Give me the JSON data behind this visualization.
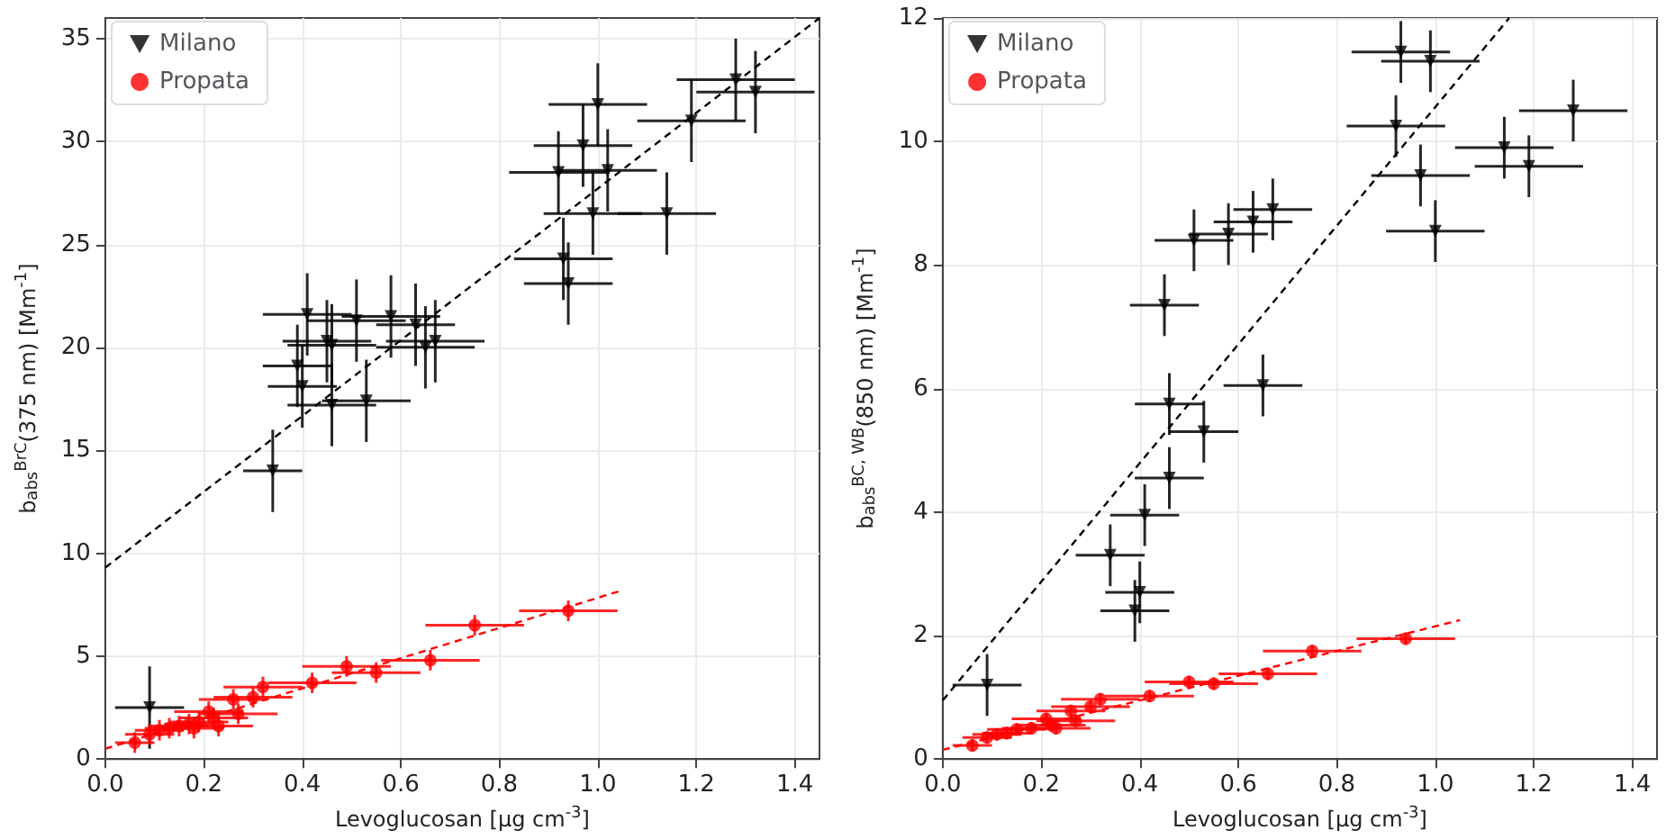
{
  "chart_data": [
    {
      "type": "scatter",
      "xlabel": "Levoglucosan [µg cm$^{-3}$]",
      "ylabel": "b$_{abs}$$^{BrC}$(375 nm) [Mm$^{-1}$]",
      "xlim": [
        0,
        1.45
      ],
      "ylim": [
        0,
        36
      ],
      "xticks": [
        {
          "value": 0,
          "label": "0.0"
        },
        {
          "value": 0.2,
          "label": "0.2"
        },
        {
          "value": 0.4,
          "label": "0.4"
        },
        {
          "value": 0.6,
          "label": "0.6"
        },
        {
          "value": 0.8,
          "label": "0.8"
        },
        {
          "value": 1,
          "label": "1.0"
        },
        {
          "value": 1.2,
          "label": "1.2"
        },
        {
          "value": 1.4,
          "label": "1.4"
        }
      ],
      "yticks": [
        0,
        5,
        10,
        15,
        20,
        25,
        30,
        35
      ],
      "grid": true,
      "legend": "top left",
      "series": [
        {
          "name": "Milano",
          "color": "#000000",
          "marker": "triangle",
          "x": [
            0.09,
            0.34,
            0.39,
            0.4,
            0.41,
            0.45,
            0.46,
            0.46,
            0.51,
            0.53,
            0.58,
            0.63,
            0.65,
            0.67,
            0.92,
            0.93,
            0.94,
            0.97,
            0.99,
            1.0,
            1.02,
            1.14,
            1.19,
            1.28,
            1.32
          ],
          "values": [
            2.5,
            14,
            19.1,
            18.1,
            21.6,
            20.3,
            20.1,
            17.2,
            21.3,
            17.4,
            21.5,
            21.1,
            20.0,
            20.3,
            28.5,
            24.3,
            23.1,
            29.8,
            26.5,
            31.8,
            28.6,
            26.5,
            31.0,
            33.0,
            32.4
          ],
          "errors": [
            2,
            2,
            2,
            2,
            2,
            2,
            2,
            2,
            2,
            2,
            2,
            2,
            2,
            2,
            2,
            2,
            2,
            2,
            2,
            2,
            2,
            2,
            2,
            2,
            2
          ],
          "xerrors": [
            0.07,
            0.06,
            0.07,
            0.07,
            0.09,
            0.09,
            0.09,
            0.09,
            0.1,
            0.09,
            0.1,
            0.08,
            0.1,
            0.1,
            0.1,
            0.1,
            0.09,
            0.1,
            0.1,
            0.1,
            0.1,
            0.1,
            0.11,
            0.12,
            0.12
          ]
        },
        {
          "name": "Propata",
          "color": "#ff0000",
          "marker": "circle",
          "x": [
            0.06,
            0.09,
            0.11,
            0.13,
            0.15,
            0.17,
            0.18,
            0.19,
            0.21,
            0.22,
            0.23,
            0.26,
            0.27,
            0.3,
            0.32,
            0.42,
            0.49,
            0.55,
            0.66,
            0.75,
            0.94
          ],
          "values": [
            0.8,
            1.2,
            1.4,
            1.5,
            1.6,
            1.7,
            1.5,
            1.8,
            2.3,
            2.0,
            1.6,
            2.9,
            2.2,
            3.0,
            3.5,
            3.7,
            4.5,
            4.2,
            4.8,
            6.5,
            7.2
          ],
          "errors": [
            0.5,
            0.5,
            0.5,
            0.5,
            0.5,
            0.5,
            0.5,
            0.5,
            0.5,
            0.5,
            0.5,
            0.5,
            0.5,
            0.5,
            0.5,
            0.5,
            0.5,
            0.5,
            0.5,
            0.5,
            0.5
          ],
          "xerrors": [
            0.04,
            0.05,
            0.05,
            0.05,
            0.06,
            0.05,
            0.06,
            0.06,
            0.07,
            0.07,
            0.07,
            0.07,
            0.08,
            0.08,
            0.08,
            0.09,
            0.09,
            0.09,
            0.1,
            0.1,
            0.1
          ]
        },
        {
          "type": "line",
          "color": "#000000",
          "line_style": "dashed",
          "x": [
            0,
            1.45
          ],
          "values": [
            9.3,
            36
          ]
        },
        {
          "type": "line",
          "color": "#ff0000",
          "line_style": "dashed",
          "x": [
            0,
            1.05
          ],
          "values": [
            0.5,
            8.2
          ]
        }
      ]
    },
    {
      "type": "scatter",
      "xlabel": "Levoglucosan [µg cm$^{-3}$]",
      "ylabel": "b$_{abs}$$^{BC, WB}$(850 nm) [Mm$^{-1}$]",
      "xlim": [
        0,
        1.45
      ],
      "ylim": [
        0,
        12
      ],
      "xticks": [
        {
          "value": 0,
          "label": "0.0"
        },
        {
          "value": 0.2,
          "label": "0.2"
        },
        {
          "value": 0.4,
          "label": "0.4"
        },
        {
          "value": 0.6,
          "label": "0.6"
        },
        {
          "value": 0.8,
          "label": "0.8"
        },
        {
          "value": 1,
          "label": "1.0"
        },
        {
          "value": 1.2,
          "label": "1.2"
        },
        {
          "value": 1.4,
          "label": "1.4"
        }
      ],
      "yticks": [
        0,
        2,
        4,
        6,
        8,
        10,
        12
      ],
      "grid": true,
      "legend": "top left",
      "series": [
        {
          "name": "Milano",
          "color": "#000000",
          "marker": "triangle",
          "x": [
            0.09,
            0.34,
            0.39,
            0.4,
            0.41,
            0.45,
            0.46,
            0.46,
            0.51,
            0.53,
            0.58,
            0.63,
            0.65,
            0.67,
            0.92,
            0.93,
            0.97,
            0.99,
            1.0,
            1.14,
            1.19,
            1.28
          ],
          "values": [
            1.2,
            3.3,
            2.4,
            2.7,
            3.95,
            7.35,
            5.75,
            4.55,
            8.4,
            5.3,
            8.5,
            8.7,
            6.05,
            8.9,
            10.25,
            11.45,
            9.45,
            11.3,
            8.55,
            9.9,
            9.6,
            10.5
          ],
          "errors": [
            0.5,
            0.5,
            0.5,
            0.5,
            0.5,
            0.5,
            0.5,
            0.5,
            0.5,
            0.5,
            0.5,
            0.5,
            0.5,
            0.5,
            0.5,
            0.5,
            0.5,
            0.5,
            0.5,
            0.5,
            0.5,
            0.5
          ],
          "xerrors": [
            0.07,
            0.07,
            0.07,
            0.07,
            0.07,
            0.07,
            0.07,
            0.07,
            0.08,
            0.07,
            0.08,
            0.08,
            0.08,
            0.08,
            0.1,
            0.1,
            0.1,
            0.1,
            0.1,
            0.1,
            0.11,
            0.11
          ]
        },
        {
          "name": "Propata",
          "color": "#ff0000",
          "marker": "circle",
          "x": [
            0.06,
            0.09,
            0.11,
            0.13,
            0.15,
            0.18,
            0.21,
            0.22,
            0.23,
            0.26,
            0.27,
            0.3,
            0.32,
            0.42,
            0.5,
            0.55,
            0.66,
            0.75,
            0.94
          ],
          "values": [
            0.22,
            0.35,
            0.4,
            0.42,
            0.48,
            0.5,
            0.65,
            0.55,
            0.5,
            0.78,
            0.62,
            0.85,
            0.97,
            1.02,
            1.25,
            1.22,
            1.38,
            1.75,
            1.95
          ],
          "errors": [
            0.1,
            0.1,
            0.1,
            0.1,
            0.1,
            0.1,
            0.1,
            0.1,
            0.1,
            0.1,
            0.1,
            0.1,
            0.1,
            0.1,
            0.1,
            0.1,
            0.1,
            0.1,
            0.1
          ],
          "xerrors": [
            0.04,
            0.05,
            0.05,
            0.05,
            0.06,
            0.06,
            0.07,
            0.07,
            0.07,
            0.07,
            0.08,
            0.08,
            0.08,
            0.09,
            0.09,
            0.09,
            0.1,
            0.1,
            0.1
          ]
        },
        {
          "type": "line",
          "color": "#000000",
          "line_style": "dashed",
          "x": [
            0,
            1.15
          ],
          "values": [
            0.95,
            12
          ]
        },
        {
          "type": "line",
          "color": "#ff0000",
          "line_style": "dashed",
          "x": [
            0,
            1.05
          ],
          "values": [
            0.15,
            2.25
          ]
        }
      ]
    }
  ]
}
